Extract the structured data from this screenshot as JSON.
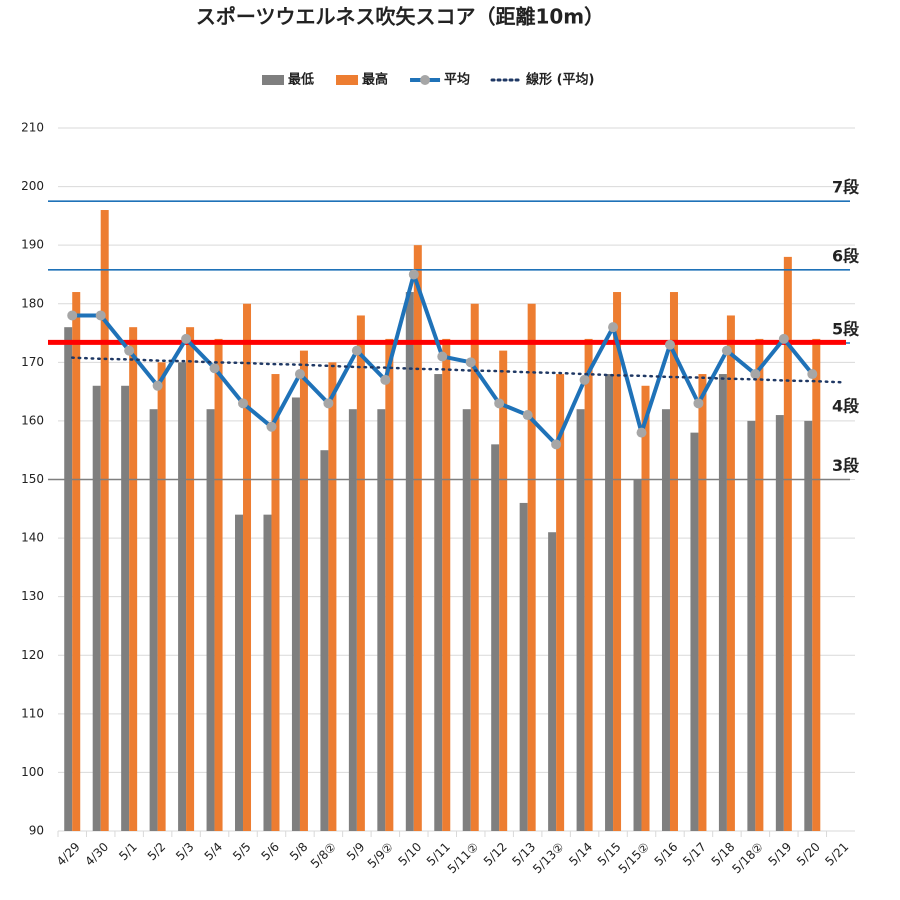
{
  "chart_data": {
    "type": "bar",
    "title": "スポーツウエルネス吹矢スコア（距離10m）",
    "categories": [
      "4/29",
      "4/30",
      "5/1",
      "5/2",
      "5/3",
      "5/4",
      "5/5",
      "5/6",
      "5/8",
      "5/8②",
      "5/9",
      "5/9②",
      "5/10",
      "5/11",
      "5/11②",
      "5/12",
      "5/13",
      "5/13②",
      "5/14",
      "5/15",
      "5/15②",
      "5/16",
      "5/17",
      "5/18",
      "5/18②",
      "5/19",
      "5/20",
      "5/21"
    ],
    "series": [
      {
        "name": "最低",
        "kind": "bar",
        "color": "#7f7f7f",
        "values": [
          176,
          166,
          166,
          162,
          170,
          162,
          144,
          144,
          164,
          155,
          162,
          162,
          182,
          168,
          162,
          156,
          146,
          141,
          162,
          168,
          150,
          162,
          158,
          168,
          160,
          161,
          160,
          null
        ]
      },
      {
        "name": "最高",
        "kind": "bar",
        "color": "#ed7d31",
        "values": [
          182,
          196,
          176,
          170,
          176,
          174,
          180,
          168,
          172,
          170,
          178,
          174,
          190,
          174,
          180,
          172,
          180,
          168,
          174,
          182,
          166,
          182,
          168,
          178,
          174,
          188,
          174,
          null
        ]
      },
      {
        "name": "平均",
        "kind": "line",
        "color": "#1f72b8",
        "marker_color": "#a6a6a6",
        "values": [
          178,
          178,
          172,
          166,
          174,
          169,
          163,
          159,
          168,
          163,
          172,
          167,
          185,
          171,
          170,
          163,
          161,
          156,
          167,
          176,
          158,
          173,
          163,
          172,
          168,
          174,
          168,
          null
        ]
      },
      {
        "name": "線形 (平均)",
        "kind": "dotted",
        "color": "#1f3864",
        "values": [
          170.8,
          170.6,
          170.5,
          170.3,
          170.2,
          170.0,
          169.9,
          169.7,
          169.6,
          169.4,
          169.2,
          169.1,
          168.9,
          168.8,
          168.6,
          168.5,
          168.3,
          168.2,
          168.0,
          167.8,
          167.7,
          167.5,
          167.4,
          167.2,
          167.1,
          166.9,
          166.8,
          166.6
        ]
      }
    ],
    "reference_lines": [
      {
        "label": "7段",
        "value": 197.5,
        "color": "#1f72b8",
        "label_color": "#222222"
      },
      {
        "label": "6段",
        "value": 185.8,
        "color": "#1f72b8",
        "label_color": "#222222"
      },
      {
        "label": "5段",
        "value": 173.3,
        "color": "#1f72b8",
        "label_color": "#2e75b6"
      },
      {
        "label": "4段",
        "value": 167.5,
        "color": null,
        "label_color": "#222222"
      },
      {
        "label": "3段",
        "value": 150,
        "color": "#7f7f7f",
        "label_color": "#222222"
      },
      {
        "value": 173.4,
        "color": "#ff0000",
        "width": 5
      }
    ],
    "ylim": [
      90,
      210
    ],
    "yticks": [
      90,
      100,
      110,
      120,
      130,
      140,
      150,
      160,
      170,
      180,
      190,
      200,
      210
    ],
    "grid": true
  }
}
